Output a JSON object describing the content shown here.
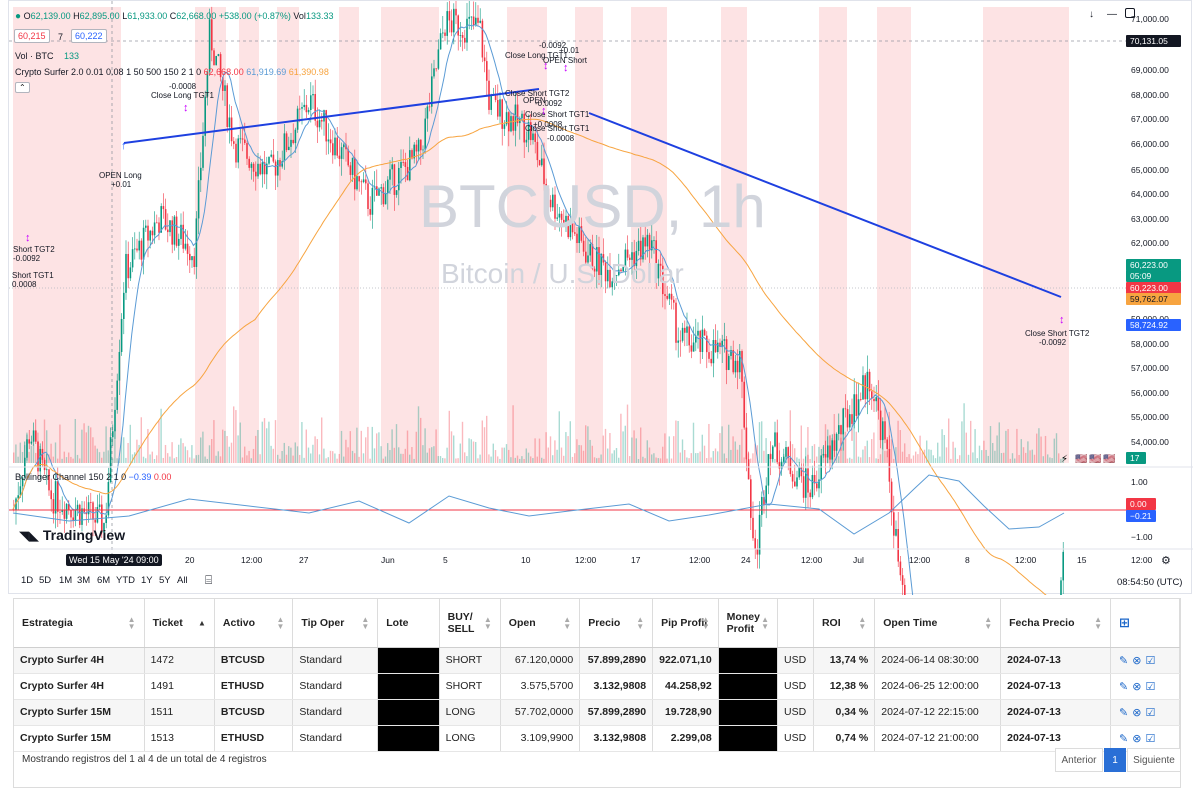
{
  "legend": {
    "o_label": "O",
    "o": "62,139.00",
    "h_label": "H",
    "h": "62,895.00",
    "l_label": "L",
    "l": "61,933.00",
    "c_label": "C",
    "c": "62,668.00",
    "change": "+538.00 (+0.87%)",
    "vol_label": "Vol",
    "vol": "133.33",
    "box_left": "60,215",
    "box_mid": "7",
    "box_right": "60,222",
    "vol_btc_label": "Vol · BTC",
    "vol_btc": "133",
    "indicator_name": "Crypto Surfer 2.0 0.01 0.08 1 50 500 150 2 1 0",
    "ind_v1": "62,668.00",
    "ind_v2": "61,919.69",
    "ind_v3": "61,390.98",
    "osc_name": "Bollinger Channel 150 2 1 0",
    "osc_v1": "−0.39",
    "osc_v2": "0.00"
  },
  "watermark": {
    "symbol": "BTCUSD, 1h",
    "name": "Bitcoin / U.S. Dollar"
  },
  "price_axis": [
    "71,000.00",
    "69,000.00",
    "68,000.00",
    "67,000.00",
    "66,000.00",
    "65,000.00",
    "64,000.00",
    "63,000.00",
    "62,000.00",
    "59,000.00",
    "58,000.00",
    "57,000.00",
    "56,000.00",
    "55,000.00",
    "54,000.00"
  ],
  "price_tags": {
    "crosshair": "70,131.05",
    "last": "60,223.00",
    "countdown": "05:09",
    "last2": "60,223.00",
    "ma_orange": "59,762.07",
    "ma_blue": "58,724.92",
    "vol_tag": "17"
  },
  "osc_axis": [
    "1.00",
    "−1.00"
  ],
  "osc_tags": {
    "red": "0.00",
    "blue": "−0.21"
  },
  "time_axis": [
    "20",
    "12:00",
    "27",
    "Jun",
    "5",
    "10",
    "12:00",
    "17",
    "12:00",
    "24",
    "12:00",
    "Jul",
    "12:00",
    "8",
    "12:00",
    "15",
    "12:00"
  ],
  "time_cursor": "Wed 15 May '24  09:00",
  "timeframes": [
    "1D",
    "5D",
    "1M",
    "3M",
    "6M",
    "YTD",
    "1Y",
    "5Y",
    "All"
  ],
  "clock": "08:54:50 (UTC)",
  "brand": "TradingView",
  "annotations": [
    {
      "t": "OPEN Long"
    },
    {
      "t": "+0.01"
    },
    {
      "t": "-0.0008"
    },
    {
      "t": "Close Long TGT1"
    },
    {
      "t": "Short TGT2"
    },
    {
      "t": "-0.0092"
    },
    {
      "t": "Short TGT1"
    },
    {
      "t": "0.0008"
    },
    {
      "t": "-0.0092"
    },
    {
      "t": "+0.01"
    },
    {
      "t": "Close Long TGT1"
    },
    {
      "t": "OPEN Short"
    },
    {
      "t": "Close Short TGT2"
    },
    {
      "t": "OPEN"
    },
    {
      "t": "-0.0092"
    },
    {
      "t": "Close Short TGT1"
    },
    {
      "t": "+0.0008"
    },
    {
      "t": "Close Short TGT1"
    },
    {
      "t": "-0.0008"
    },
    {
      "t": "Close Short TGT2"
    },
    {
      "t": "-0.0092"
    }
  ],
  "colors": {
    "up": "#089981",
    "down": "#f23645",
    "trend": "#1e40e0",
    "ma_blue": "#5b9bd5",
    "ma_orange": "#f7a440",
    "shade": "#fde3e4"
  },
  "table": {
    "headers": [
      "Estrategia",
      "Ticket",
      "Activo",
      "Tip Oper",
      "Lote",
      "BUY/ SELL",
      "Open",
      "Precio",
      "Pip Profit",
      "Money Profit",
      "",
      "ROI",
      "Open Time",
      "Fecha Precio",
      ""
    ],
    "rows": [
      [
        "Crypto Surfer 4H",
        "1472",
        "BTCUSD",
        "Standard",
        "",
        "SHORT",
        "67.120,0000",
        "57.899,2890",
        "922.071,10",
        "",
        "USD",
        "13,74 %",
        "2024-06-14 08:30:00",
        "2024-07-13"
      ],
      [
        "Crypto Surfer 4H",
        "1491",
        "ETHUSD",
        "Standard",
        "",
        "SHORT",
        "3.575,5700",
        "3.132,9808",
        "44.258,92",
        "",
        "USD",
        "12,38 %",
        "2024-06-25 12:00:00",
        "2024-07-13"
      ],
      [
        "Crypto Surfer 15M",
        "1511",
        "BTCUSD",
        "Standard",
        "",
        "LONG",
        "57.702,0000",
        "57.899,2890",
        "19.728,90",
        "",
        "USD",
        "0,34 %",
        "2024-07-12 22:15:00",
        "2024-07-13"
      ],
      [
        "Crypto Surfer 15M",
        "1513",
        "ETHUSD",
        "Standard",
        "",
        "LONG",
        "3.109,9900",
        "3.132,9808",
        "2.299,08",
        "",
        "USD",
        "0,74 %",
        "2024-07-12 21:00:00",
        "2024-07-13"
      ]
    ],
    "footer": "Mostrando registros del 1 al 4 de un total de 4 registros",
    "prev": "Anterior",
    "page": "1",
    "next": "Siguiente"
  }
}
